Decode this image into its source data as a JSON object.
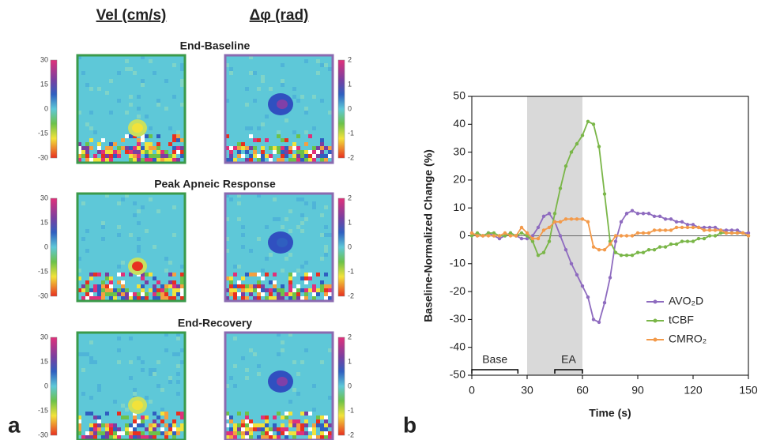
{
  "panel_a": {
    "label": "a",
    "columns": [
      "Vel (cm/s)",
      "Δφ (rad)"
    ],
    "rows": [
      "End-Baseline",
      "Peak Apneic Response",
      "End-Recovery"
    ],
    "vel_colorbar_ticks": [
      30,
      15,
      0,
      -15,
      -30
    ],
    "phase_colorbar_ticks": [
      2,
      1,
      0,
      -1,
      -2
    ]
  },
  "chart_data": {
    "type": "line",
    "label": "b",
    "xlabel": "Time (s)",
    "ylabel": "Baseline-Normalized Change (%)",
    "x": [
      0,
      3,
      6,
      9,
      12,
      15,
      18,
      21,
      24,
      27,
      30,
      33,
      36,
      39,
      42,
      45,
      48,
      51,
      54,
      57,
      60,
      63,
      66,
      69,
      72,
      75,
      78,
      81,
      84,
      87,
      90,
      93,
      96,
      99,
      102,
      105,
      108,
      111,
      114,
      117,
      120,
      123,
      126,
      129,
      132,
      135,
      138,
      141,
      144,
      147,
      150
    ],
    "series": [
      {
        "name": "AVO₂D",
        "color": "#8e6bbf",
        "values": [
          1,
          0,
          0,
          1,
          0,
          -1,
          0,
          1,
          0,
          -1,
          -1,
          0,
          3,
          7,
          8,
          5,
          0,
          -5,
          -10,
          -14,
          -18,
          -22,
          -30,
          -31,
          -24,
          -15,
          -2,
          5,
          8,
          9,
          8,
          8,
          8,
          7,
          7,
          6,
          6,
          5,
          5,
          4,
          4,
          3,
          3,
          3,
          3,
          2,
          2,
          2,
          2,
          1,
          1
        ]
      },
      {
        "name": "tCBF",
        "color": "#7ab648",
        "values": [
          0,
          1,
          0,
          1,
          1,
          0,
          0,
          1,
          0,
          1,
          0,
          -2,
          -7,
          -6,
          -2,
          8,
          17,
          25,
          30,
          33,
          36,
          41,
          40,
          32,
          15,
          -2,
          -6,
          -7,
          -7,
          -7,
          -6,
          -6,
          -5,
          -5,
          -4,
          -4,
          -3,
          -3,
          -2,
          -2,
          -2,
          -1,
          -1,
          0,
          0,
          1,
          1,
          1,
          1,
          1,
          0
        ]
      },
      {
        "name": "CMRO₂",
        "color": "#f39a4a",
        "values": [
          1,
          0,
          0,
          0,
          0,
          0,
          1,
          0,
          0,
          3,
          1,
          -1,
          -1,
          2,
          3,
          5,
          5,
          6,
          6,
          6,
          6,
          5,
          -4,
          -5,
          -5,
          -3,
          0,
          0,
          0,
          0,
          1,
          1,
          1,
          2,
          2,
          2,
          2,
          3,
          3,
          3,
          3,
          3,
          2,
          2,
          2,
          2,
          1,
          1,
          1,
          1,
          0
        ]
      }
    ],
    "xlim": [
      0,
      150
    ],
    "xticks": [
      0,
      30,
      60,
      90,
      120,
      150
    ],
    "ylim": [
      -50,
      50
    ],
    "yticks": [
      -50,
      -40,
      -30,
      -20,
      -10,
      0,
      10,
      20,
      30,
      40,
      50
    ],
    "shaded_span": [
      30,
      60
    ],
    "brackets": [
      {
        "label": "Base",
        "x": [
          0,
          25
        ]
      },
      {
        "label": "EA",
        "x": [
          45,
          60
        ]
      }
    ],
    "legend": "lower right"
  }
}
